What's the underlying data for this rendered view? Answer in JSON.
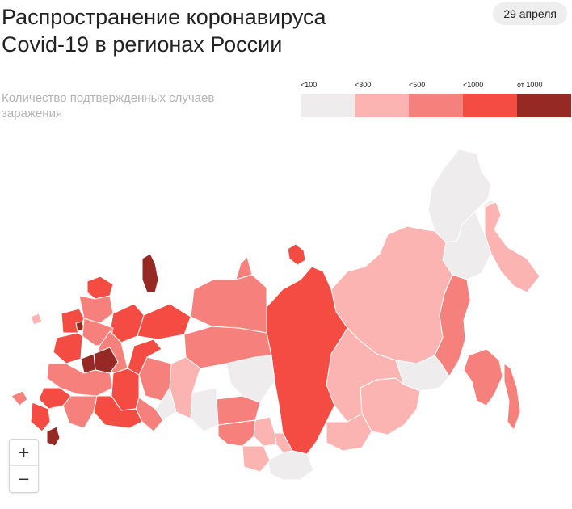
{
  "title": {
    "line1": "Распространение коронавируса",
    "line2": "Covid-19 в регионах России"
  },
  "date_badge": "29 апреля",
  "subtitle": "Количество подтвержденных случаев заражения",
  "legend": [
    {
      "label": "<100",
      "color": "#efeced"
    },
    {
      "label": "<300",
      "color": "#fbb4b1"
    },
    {
      "label": "<500",
      "color": "#f6807b"
    },
    {
      "label": "<1000",
      "color": "#f44b43"
    },
    {
      "label": "от 1000",
      "color": "#962923"
    }
  ],
  "zoom": {
    "in_icon": "+",
    "out_icon": "−"
  }
}
